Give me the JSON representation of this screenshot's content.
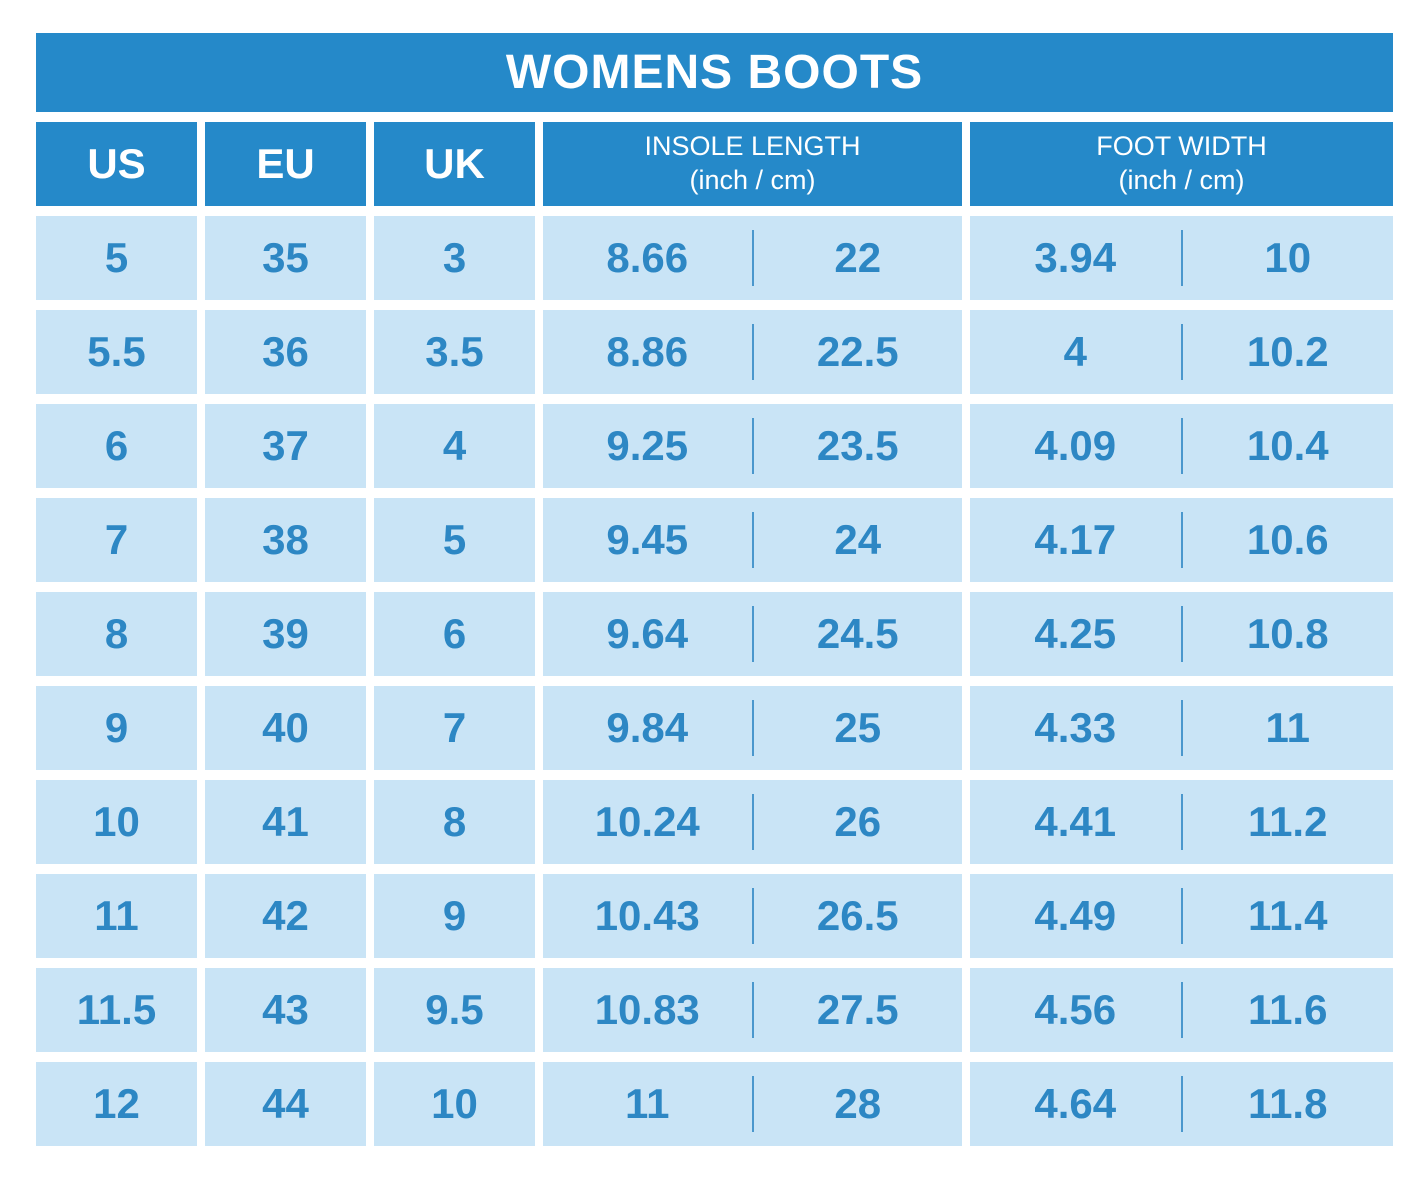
{
  "title": "WOMENS BOOTS",
  "colors": {
    "header_blue": "#2589C9",
    "cell_blue": "#C9E4F6",
    "text_blue": "#2D87C4",
    "divider_blue": "#4A97CD"
  },
  "table": {
    "columns": [
      {
        "label": "US"
      },
      {
        "label": "EU"
      },
      {
        "label": "UK"
      },
      {
        "label": "INSOLE LENGTH",
        "sublabel": "(inch / cm)"
      },
      {
        "label": "FOOT WIDTH",
        "sublabel": "(inch / cm)"
      }
    ],
    "rows": [
      {
        "us": "5",
        "eu": "35",
        "uk": "3",
        "insole_inch": "8.66",
        "insole_cm": "22",
        "width_inch": "3.94",
        "width_cm": "10"
      },
      {
        "us": "5.5",
        "eu": "36",
        "uk": "3.5",
        "insole_inch": "8.86",
        "insole_cm": "22.5",
        "width_inch": "4",
        "width_cm": "10.2"
      },
      {
        "us": "6",
        "eu": "37",
        "uk": "4",
        "insole_inch": "9.25",
        "insole_cm": "23.5",
        "width_inch": "4.09",
        "width_cm": "10.4"
      },
      {
        "us": "7",
        "eu": "38",
        "uk": "5",
        "insole_inch": "9.45",
        "insole_cm": "24",
        "width_inch": "4.17",
        "width_cm": "10.6"
      },
      {
        "us": "8",
        "eu": "39",
        "uk": "6",
        "insole_inch": "9.64",
        "insole_cm": "24.5",
        "width_inch": "4.25",
        "width_cm": "10.8"
      },
      {
        "us": "9",
        "eu": "40",
        "uk": "7",
        "insole_inch": "9.84",
        "insole_cm": "25",
        "width_inch": "4.33",
        "width_cm": "11"
      },
      {
        "us": "10",
        "eu": "41",
        "uk": "8",
        "insole_inch": "10.24",
        "insole_cm": "26",
        "width_inch": "4.41",
        "width_cm": "11.2"
      },
      {
        "us": "11",
        "eu": "42",
        "uk": "9",
        "insole_inch": "10.43",
        "insole_cm": "26.5",
        "width_inch": "4.49",
        "width_cm": "11.4"
      },
      {
        "us": "11.5",
        "eu": "43",
        "uk": "9.5",
        "insole_inch": "10.83",
        "insole_cm": "27.5",
        "width_inch": "4.56",
        "width_cm": "11.6"
      },
      {
        "us": "12",
        "eu": "44",
        "uk": "10",
        "insole_inch": "11",
        "insole_cm": "28",
        "width_inch": "4.64",
        "width_cm": "11.8"
      }
    ]
  },
  "chart_data": {
    "type": "table",
    "title": "WOMENS BOOTS",
    "columns": [
      "US",
      "EU",
      "UK",
      "INSOLE LENGTH (inch)",
      "INSOLE LENGTH (cm)",
      "FOOT WIDTH (inch)",
      "FOOT WIDTH (cm)"
    ],
    "rows": [
      [
        "5",
        "35",
        "3",
        "8.66",
        "22",
        "3.94",
        "10"
      ],
      [
        "5.5",
        "36",
        "3.5",
        "8.86",
        "22.5",
        "4",
        "10.2"
      ],
      [
        "6",
        "37",
        "4",
        "9.25",
        "23.5",
        "4.09",
        "10.4"
      ],
      [
        "7",
        "38",
        "5",
        "9.45",
        "24",
        "4.17",
        "10.6"
      ],
      [
        "8",
        "39",
        "6",
        "9.64",
        "24.5",
        "4.25",
        "10.8"
      ],
      [
        "9",
        "40",
        "7",
        "9.84",
        "25",
        "4.33",
        "11"
      ],
      [
        "10",
        "41",
        "8",
        "10.24",
        "26",
        "4.41",
        "11.2"
      ],
      [
        "11",
        "42",
        "9",
        "10.43",
        "26.5",
        "4.49",
        "11.4"
      ],
      [
        "11.5",
        "43",
        "9.5",
        "10.83",
        "27.5",
        "4.56",
        "11.6"
      ],
      [
        "12",
        "44",
        "10",
        "11",
        "28",
        "4.64",
        "11.8"
      ]
    ]
  }
}
